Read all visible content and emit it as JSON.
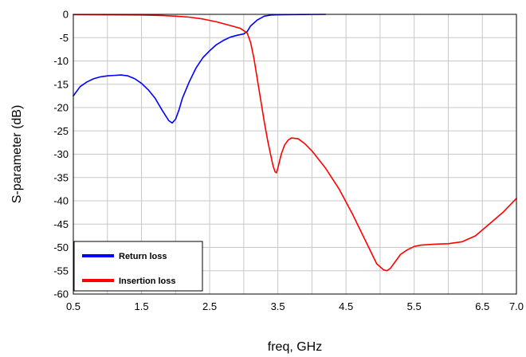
{
  "chart_data": {
    "type": "line",
    "title": "",
    "xlabel": "freq, GHz",
    "ylabel": "S-parameter (dB)",
    "xlim": [
      0.5,
      7.0
    ],
    "ylim": [
      -60,
      0
    ],
    "grid": true,
    "legend_position": "bottom-left",
    "x_ticks": [
      0.5,
      1.5,
      2.5,
      3.5,
      4.5,
      5.5,
      6.5,
      7.0
    ],
    "x_tick_labels": [
      "0.5",
      "1.5",
      "2.5",
      "3.5",
      "4.5",
      "5.5",
      "6.5",
      "7.0"
    ],
    "x_grid": [
      0.5,
      1.0,
      1.5,
      2.0,
      2.5,
      3.0,
      3.5,
      4.0,
      4.5,
      5.0,
      5.5,
      6.0,
      6.5,
      7.0
    ],
    "y_ticks": [
      0,
      -5,
      -10,
      -15,
      -20,
      -25,
      -30,
      -35,
      -40,
      -45,
      -50,
      -55,
      -60
    ],
    "y_tick_labels": [
      "0",
      "-5",
      "-10",
      "-15",
      "-20",
      "-25",
      "-30",
      "-35",
      "-40",
      "-45",
      "-50",
      "-55",
      "-60"
    ],
    "series": [
      {
        "name": "Return loss",
        "color": "#0000ff",
        "x": [
          0.5,
          0.6,
          0.7,
          0.8,
          0.9,
          1.0,
          1.1,
          1.2,
          1.3,
          1.4,
          1.5,
          1.6,
          1.7,
          1.8,
          1.9,
          1.95,
          2.0,
          2.05,
          2.1,
          2.2,
          2.3,
          2.4,
          2.5,
          2.6,
          2.7,
          2.8,
          2.9,
          3.0,
          3.05,
          3.1,
          3.2,
          3.3,
          3.4,
          3.5,
          3.7,
          4.0,
          4.2
        ],
        "y": [
          -17.5,
          -15.5,
          -14.5,
          -13.8,
          -13.4,
          -13.2,
          -13.1,
          -13.0,
          -13.2,
          -13.8,
          -14.8,
          -16.2,
          -18.0,
          -20.5,
          -22.8,
          -23.3,
          -22.5,
          -20.5,
          -18.0,
          -14.5,
          -11.5,
          -9.3,
          -7.8,
          -6.5,
          -5.6,
          -4.9,
          -4.5,
          -4.2,
          -3.7,
          -2.5,
          -1.2,
          -0.4,
          -0.15,
          -0.1,
          -0.05,
          -0.02,
          0.0
        ]
      },
      {
        "name": "Insertion loss",
        "color": "#ff0000",
        "x": [
          0.5,
          1.0,
          1.5,
          1.8,
          2.0,
          2.2,
          2.4,
          2.6,
          2.8,
          2.95,
          3.05,
          3.1,
          3.15,
          3.2,
          3.25,
          3.3,
          3.35,
          3.4,
          3.43,
          3.46,
          3.48,
          3.5,
          3.55,
          3.6,
          3.65,
          3.7,
          3.8,
          3.9,
          4.0,
          4.2,
          4.4,
          4.6,
          4.8,
          4.95,
          5.05,
          5.1,
          5.15,
          5.2,
          5.3,
          5.4,
          5.5,
          5.6,
          5.8,
          6.0,
          6.2,
          6.4,
          6.6,
          6.8,
          7.0
        ],
        "y": [
          -0.05,
          -0.1,
          -0.15,
          -0.25,
          -0.4,
          -0.6,
          -1.0,
          -1.6,
          -2.4,
          -3.0,
          -4.0,
          -6.0,
          -9.5,
          -14.0,
          -18.5,
          -23.0,
          -27.0,
          -30.5,
          -32.5,
          -33.8,
          -34.0,
          -33.0,
          -30.0,
          -28.0,
          -27.0,
          -26.5,
          -26.7,
          -27.8,
          -29.3,
          -33.0,
          -37.5,
          -43.0,
          -49.0,
          -53.5,
          -54.8,
          -55.0,
          -54.5,
          -53.5,
          -51.5,
          -50.5,
          -49.8,
          -49.5,
          -49.3,
          -49.2,
          -48.8,
          -47.5,
          -45.0,
          -42.5,
          -39.5
        ]
      }
    ]
  }
}
